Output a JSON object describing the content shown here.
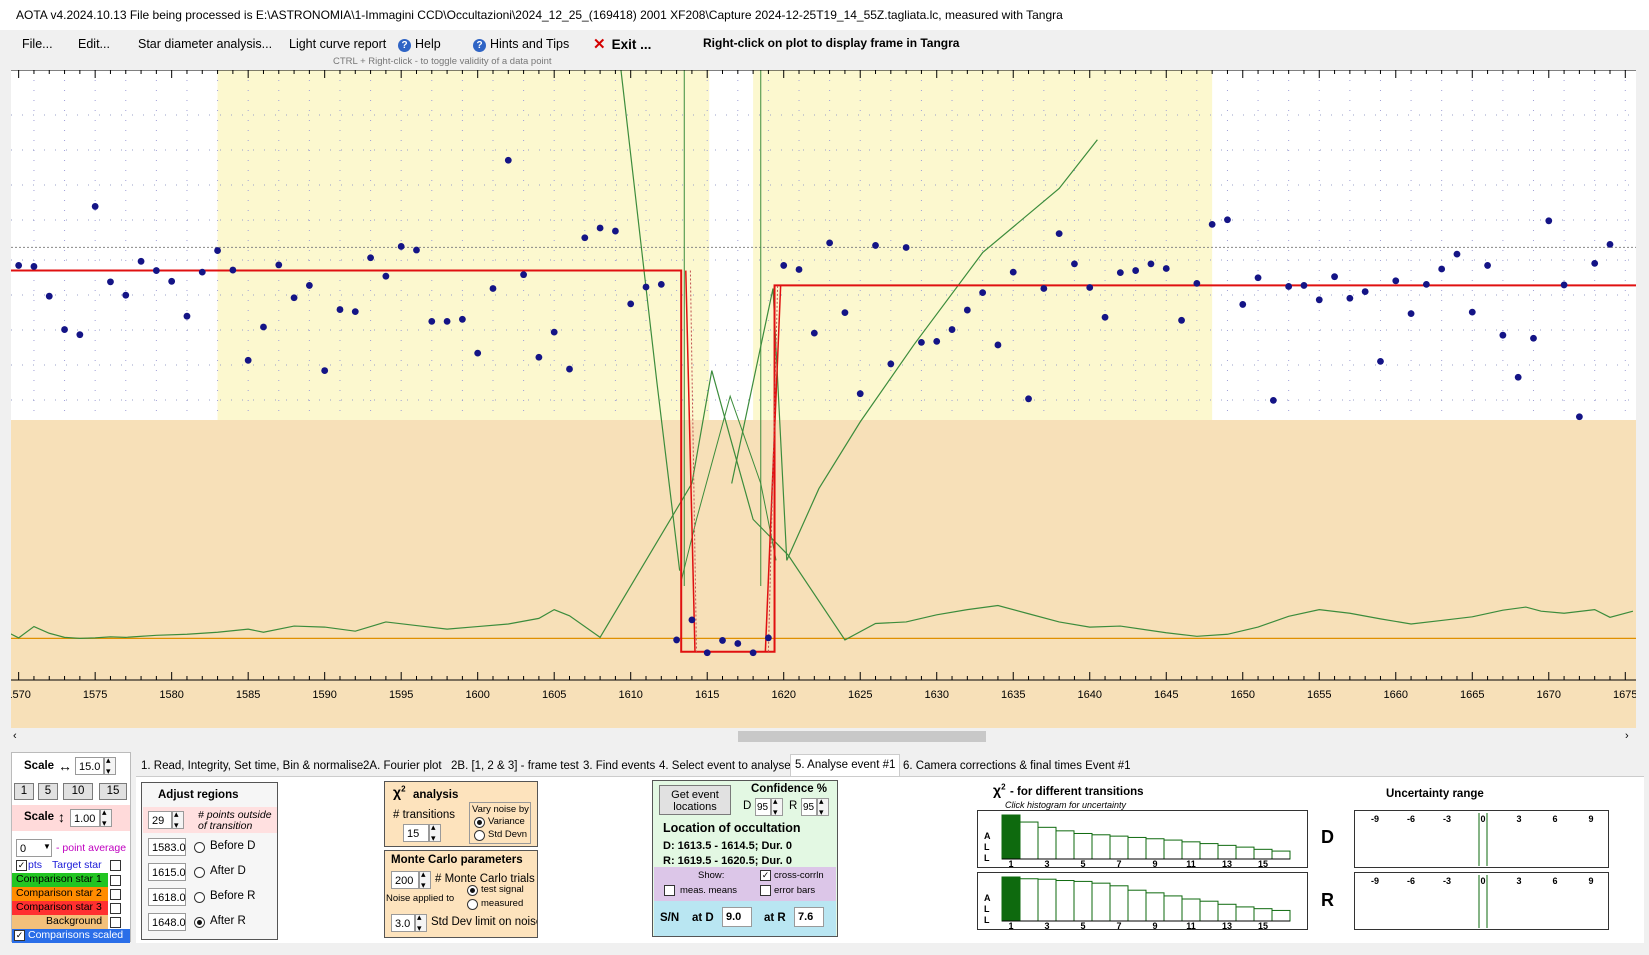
{
  "window": {
    "title": "AOTA v4.2024.10.13    File being processed is E:\\ASTRONOMIA\\1-Immagini CCD\\Occultazioni\\2024_12_25_(169418) 2001 XF208\\Capture 2024-12-25T19_14_55Z.tagliata.lc, measured with Tangra"
  },
  "menu": {
    "file": "File...",
    "edit": "Edit...",
    "star_diameter": "Star diameter analysis...",
    "light_curve_report": "Light curve report",
    "help": "Help",
    "hints": "Hints and Tips",
    "exit": "Exit ...",
    "rightclick_hint": "Right-click on plot to display frame in Tangra",
    "ctrl_hint": "CTRL + Right-click  -  to toggle validity of a data point"
  },
  "chart_data": {
    "type": "scatter",
    "x_ticks": [
      1570,
      1575,
      1580,
      1585,
      1590,
      1595,
      1600,
      1605,
      1610,
      1615,
      1620,
      1625,
      1630,
      1635,
      1640,
      1645,
      1650,
      1655,
      1660,
      1665,
      1670,
      1675
    ],
    "xlim": [
      1569.5,
      1675.7
    ],
    "points_x_start": 1569,
    "points_y": [
      0.755,
      0.775,
      0.773,
      0.715,
      0.65,
      0.64,
      0.89,
      0.743,
      0.717,
      0.783,
      0.765,
      0.744,
      0.676,
      0.762,
      0.804,
      0.766,
      0.59,
      0.655,
      0.776,
      0.712,
      0.736,
      0.57,
      0.689,
      0.685,
      0.79,
      0.754,
      0.812,
      0.805,
      0.666,
      0.666,
      0.67,
      0.604,
      0.73,
      0.98,
      0.757,
      0.596,
      0.645,
      0.573,
      0.829,
      0.848,
      0.842,
      0.7,
      0.733,
      0.738,
      0.045,
      0.084,
      0.02,
      0.044,
      0.038,
      0.02,
      0.049,
      0.775,
      0.767,
      0.643,
      0.819,
      0.683,
      0.525,
      0.814,
      0.583,
      0.81,
      0.625,
      0.627,
      0.65,
      0.688,
      0.722,
      0.62,
      0.762,
      0.515,
      0.73,
      0.837,
      0.778,
      0.732,
      0.674,
      0.761,
      0.765,
      0.778,
      0.769,
      0.668,
      0.74,
      0.855,
      0.864,
      0.699,
      0.751,
      0.512,
      0.734,
      0.736,
      0.708,
      0.753,
      0.711,
      0.724,
      0.588,
      0.745,
      0.681,
      0.738,
      0.768,
      0.797,
      0.684,
      0.775,
      0.639,
      0.557,
      0.633,
      0.862,
      0.737,
      0.48,
      0.779,
      0.816
    ],
    "points_note": "",
    "baseline_level": 0.736,
    "event_bottom_level": 0.022,
    "event_D": 1614.0,
    "event_R": 1620.0,
    "event_pre_level": 0.765,
    "comparison_level": 0.048,
    "regions": {
      "before_D": [
        1583.0,
        1615.0
      ],
      "after_R": [
        1618.0,
        1648.0
      ]
    }
  },
  "scale_panel": {
    "scale_h_label": "Scale",
    "scale_h_value": "15.0",
    "presets": [
      "1",
      "5",
      "10",
      "15"
    ],
    "scale_v_label": "Scale",
    "scale_v_value": "1.00",
    "point_avg_value": "0",
    "point_avg_label": "- point average",
    "pts_label": "pts",
    "target_label": "Target star",
    "comp1": "Comparison star 1",
    "comp2": "Comparison star 2",
    "comp3": "Comparison star 3",
    "background": "Background",
    "comps_scaled": "Comparisons scaled",
    "colors": {
      "comp1": "#22c522",
      "comp2": "#ff8c00",
      "comp3": "#ff3030",
      "background": "#f3c07a",
      "comps_scaled": "#2a6ee8"
    }
  },
  "tabs": [
    "1.  Read, Integrity, Set time, Bin & normalise",
    "2A. Fourier plot",
    "2B. [1, 2 & 3] - frame test",
    "3. Find events",
    "4. Select event to analyse",
    "5. Analyse event #1",
    "6. Camera corrections & final times Event #1"
  ],
  "adjust_regions": {
    "title": "Adjust regions",
    "points_value": "29",
    "points_label_1": "# points outside",
    "points_label_2": "of transition",
    "rows": [
      {
        "value": "1583.0",
        "label": "Before D"
      },
      {
        "value": "1615.0",
        "label": "After D"
      },
      {
        "value": "1618.0",
        "label": "Before R"
      },
      {
        "value": "1648.0",
        "label": "After R"
      }
    ]
  },
  "chi2": {
    "title": "analysis",
    "transitions_label": "# transitions",
    "transitions_value": "15",
    "vary_label": "Vary noise by",
    "variance": "Variance",
    "std_devn": "Std Devn"
  },
  "monte_carlo": {
    "title": "Monte Carlo parameters",
    "trials_value": "200",
    "trials_label": "# Monte Carlo trials",
    "noise_label": "Noise applied to",
    "test_signal": "test signal",
    "measured": "measured",
    "std_value": "3.0",
    "std_label": "Std Dev limit on noise"
  },
  "location": {
    "get_event": "Get event locations",
    "confidence_label": "Confidence %",
    "d_label": "D",
    "d_value": "95",
    "r_label": "R",
    "r_value": "95",
    "title": "Location of occultation",
    "d_line": "D: 1613.5 - 1614.5; Dur. 0",
    "r_line": "R: 1619.5 - 1620.5; Dur. 0",
    "show_label": "Show:",
    "cross_corr": "cross-corrln",
    "meas_means": "meas. means",
    "error_bars": "error bars",
    "sn_label": "S/N",
    "at_d_label": "at D",
    "at_d_value": "9.0",
    "at_r_label": "at R",
    "at_r_value": "7.6"
  },
  "chi2_transitions": {
    "title": "- for different transitions",
    "subtitle": "Click histogram for uncertainty",
    "all_letters": [
      "A",
      "L",
      "L"
    ],
    "x_labels": [
      "1",
      "3",
      "5",
      "7",
      "9",
      "11",
      "13",
      "15"
    ],
    "bars_D": [
      1.0,
      0.84,
      0.72,
      0.64,
      0.58,
      0.55,
      0.52,
      0.49,
      0.46,
      0.43,
      0.39,
      0.35,
      0.31,
      0.27,
      0.22,
      0.18
    ],
    "bars_R": [
      1.0,
      0.96,
      0.95,
      0.92,
      0.9,
      0.86,
      0.8,
      0.7,
      0.64,
      0.57,
      0.5,
      0.45,
      0.38,
      0.32,
      0.28,
      0.24
    ],
    "d_label": "D",
    "r_label": "R"
  },
  "uncertainty": {
    "title": "Uncertainty range",
    "ticks": [
      "-9",
      "-6",
      "-3",
      "0",
      "3",
      "6",
      "9"
    ]
  }
}
